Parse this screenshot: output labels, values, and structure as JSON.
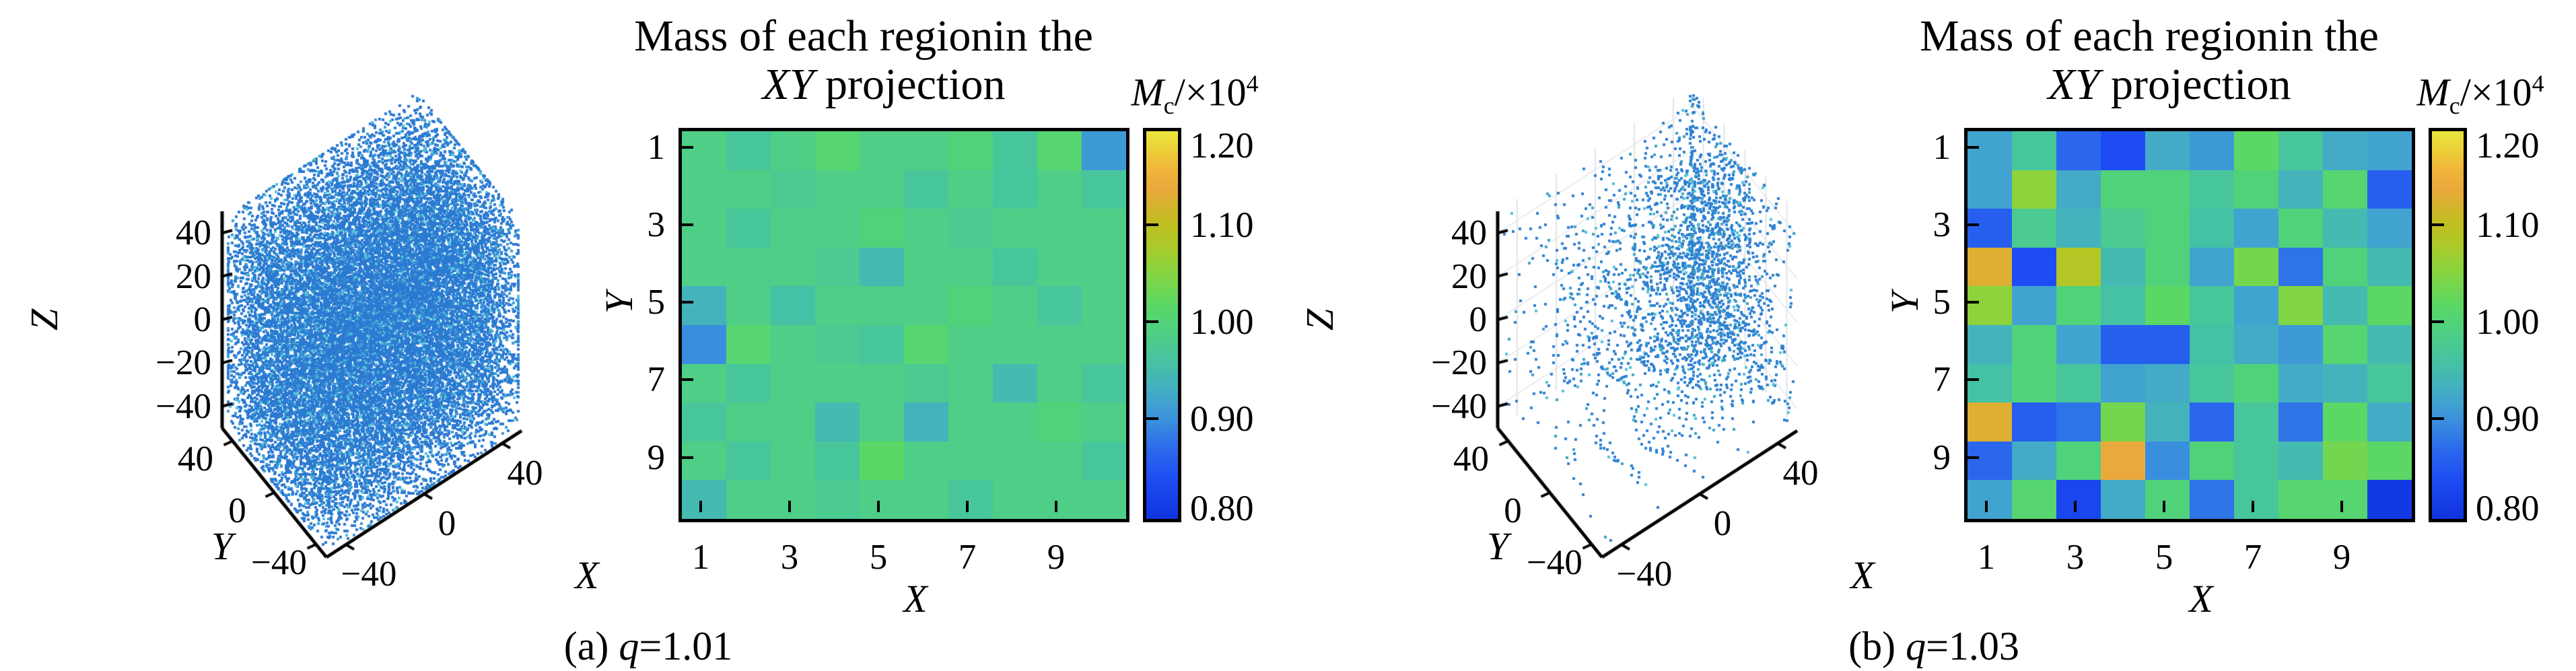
{
  "figure": {
    "background": "#ffffff",
    "point_base_color": "#2b7ad2",
    "point_accent_colors": [
      "#3f9ad6",
      "#55c2d8"
    ],
    "captions": [
      {
        "prefix": "(a) ",
        "var": "q",
        "value": "=1.01"
      },
      {
        "prefix": "(b) ",
        "var": "q",
        "value": "=1.03"
      }
    ]
  },
  "colormap": {
    "stops": [
      [
        0.8,
        "#0f33dd"
      ],
      [
        0.84,
        "#1d4df2"
      ],
      [
        0.87,
        "#2a67ec"
      ],
      [
        0.9,
        "#3a8ede"
      ],
      [
        0.92,
        "#41a3cf"
      ],
      [
        0.94,
        "#44b3bb"
      ],
      [
        0.96,
        "#45c1a5"
      ],
      [
        0.98,
        "#4bca91"
      ],
      [
        1.0,
        "#50d27b"
      ],
      [
        1.02,
        "#5bd765"
      ],
      [
        1.04,
        "#74d64e"
      ],
      [
        1.06,
        "#8ed33c"
      ],
      [
        1.08,
        "#a9ca2b"
      ],
      [
        1.1,
        "#bcc120"
      ],
      [
        1.12,
        "#d2b42a"
      ],
      [
        1.14,
        "#eaa93c"
      ],
      [
        1.16,
        "#f0b43a"
      ],
      [
        1.18,
        "#edcf39"
      ],
      [
        1.2,
        "#e9e63c"
      ]
    ]
  },
  "chart_data": [
    {
      "type": "scatter3d",
      "panel": "a",
      "description": "Dense cube-filling point cloud with concentric shell striations, q=1.01",
      "point_color": "#2b7ad2",
      "accent_colors": [
        "#3f9ad6",
        "#55c2d8"
      ],
      "show_back_grid": false,
      "generator": {
        "kind": "concentric_shells",
        "seed": 1234,
        "shells": 32,
        "spacing": 2.62,
        "density": 0.5,
        "clip": 48.5,
        "keep_clipped_near": 0.4,
        "keep_clipped_far": 0.25
      },
      "axes": {
        "x": {
          "label": "X",
          "ticks": [
            "−40",
            "0",
            "40"
          ],
          "tick_values": [
            -40,
            0,
            40
          ],
          "range": [
            -50,
            50
          ]
        },
        "y": {
          "label": "Y",
          "ticks": [
            "40",
            "0",
            "−40"
          ],
          "tick_values": [
            40,
            0,
            -40
          ],
          "range": [
            -50,
            50
          ]
        },
        "z": {
          "label": "Z",
          "ticks": [
            "40",
            "20",
            "0",
            "−20",
            "−40"
          ],
          "tick_values": [
            40,
            20,
            0,
            -20,
            -40
          ],
          "range": [
            -50,
            50
          ]
        }
      }
    },
    {
      "type": "heatmap",
      "panel": "a",
      "title_line1": "Mass of each regionin the",
      "title_line2_italic": "XY",
      "title_line2_rest": " projection",
      "colorbar_label": {
        "var": "M",
        "sub": "c",
        "rest": "/×10",
        "sup": "4"
      },
      "x_label": "X",
      "y_label": "Y",
      "x_ticks": [
        "1",
        "3",
        "5",
        "7",
        "9"
      ],
      "y_ticks": [
        "1",
        "3",
        "5",
        "7",
        "9"
      ],
      "colorbar_ticks": [
        "1.20",
        "1.10",
        "1.00",
        "0.90",
        "0.80"
      ],
      "vmin": 0.8,
      "vmax": 1.2,
      "n_rows": 10,
      "n_cols": 10,
      "matrix": [
        [
          0.99,
          0.97,
          0.99,
          1.01,
          0.99,
          0.99,
          1.0,
          0.97,
          1.01,
          0.91
        ],
        [
          0.99,
          0.99,
          0.98,
          0.99,
          0.99,
          0.97,
          0.99,
          0.97,
          0.99,
          0.97
        ],
        [
          0.99,
          0.97,
          0.99,
          0.99,
          1.0,
          0.99,
          0.98,
          0.99,
          0.99,
          0.99
        ],
        [
          0.99,
          0.99,
          0.99,
          0.98,
          0.95,
          0.99,
          0.99,
          0.97,
          0.99,
          0.99
        ],
        [
          0.94,
          0.99,
          0.96,
          0.99,
          0.99,
          0.99,
          1.0,
          0.99,
          0.97,
          0.99
        ],
        [
          0.9,
          1.01,
          0.99,
          0.98,
          0.97,
          1.01,
          0.99,
          0.99,
          0.99,
          0.99
        ],
        [
          0.99,
          0.97,
          0.99,
          0.99,
          0.99,
          0.98,
          0.99,
          0.95,
          0.99,
          0.97
        ],
        [
          0.97,
          0.99,
          0.99,
          0.95,
          0.99,
          0.94,
          0.99,
          0.99,
          1.0,
          0.99
        ],
        [
          0.99,
          0.97,
          0.99,
          0.97,
          1.02,
          0.99,
          0.99,
          0.99,
          0.99,
          0.97
        ],
        [
          0.95,
          0.99,
          0.99,
          0.98,
          0.99,
          0.99,
          0.97,
          0.99,
          0.99,
          0.99
        ]
      ]
    },
    {
      "type": "scatter3d",
      "panel": "b",
      "description": "Sparse vortex / logarithmic-spiral point cloud converging toward upper corner, q=1.03",
      "point_color": "#2e80d2",
      "accent_colors": [
        "#3fa3c4",
        "#55c2d8"
      ],
      "show_back_grid": true,
      "generator": {
        "kind": "log_spiral_vortex",
        "seed": 99,
        "center": [
          32,
          8
        ],
        "layers": 12,
        "z_start": -44,
        "z_step": 8,
        "arms": 11,
        "arm_points": 52,
        "r0": 5,
        "r_step": 2.35,
        "twist": 1.75,
        "phase_per_z": 0.018
      },
      "axes": {
        "x": {
          "label": "X",
          "ticks": [
            "−40",
            "0",
            "40"
          ],
          "tick_values": [
            -40,
            0,
            40
          ],
          "range": [
            -50,
            50
          ]
        },
        "y": {
          "label": "Y",
          "ticks": [
            "40",
            "0",
            "−40"
          ],
          "tick_values": [
            40,
            0,
            -40
          ],
          "range": [
            -50,
            50
          ]
        },
        "z": {
          "label": "Z",
          "ticks": [
            "40",
            "20",
            "0",
            "−20",
            "−40"
          ],
          "tick_values": [
            40,
            20,
            0,
            -20,
            -40
          ],
          "range": [
            -50,
            50
          ]
        }
      }
    },
    {
      "type": "heatmap",
      "panel": "b",
      "title_line1": "Mass of each regionin the",
      "title_line2_italic": "XY",
      "title_line2_rest": " projection",
      "colorbar_label": {
        "var": "M",
        "sub": "c",
        "rest": "/×10",
        "sup": "4"
      },
      "x_label": "X",
      "y_label": "Y",
      "x_ticks": [
        "1",
        "3",
        "5",
        "7",
        "9"
      ],
      "y_ticks": [
        "1",
        "3",
        "5",
        "7",
        "9"
      ],
      "colorbar_ticks": [
        "1.20",
        "1.10",
        "1.00",
        "0.90",
        "0.80"
      ],
      "vmin": 0.8,
      "vmax": 1.2,
      "n_rows": 10,
      "n_cols": 10,
      "matrix": [
        [
          0.92,
          0.97,
          0.87,
          0.84,
          0.93,
          0.91,
          1.02,
          0.97,
          0.93,
          0.92
        ],
        [
          0.92,
          1.06,
          0.93,
          1.0,
          1.0,
          0.97,
          1.0,
          0.94,
          1.01,
          0.86
        ],
        [
          0.86,
          0.98,
          0.94,
          0.98,
          1.0,
          0.96,
          0.92,
          1.0,
          0.95,
          0.92
        ],
        [
          1.13,
          0.84,
          1.09,
          0.95,
          1.0,
          0.92,
          1.04,
          0.88,
          1.0,
          0.95
        ],
        [
          1.06,
          0.92,
          1.0,
          0.96,
          1.02,
          0.97,
          0.92,
          1.05,
          0.95,
          1.02
        ],
        [
          0.94,
          1.0,
          0.92,
          0.86,
          0.86,
          0.96,
          0.93,
          0.91,
          1.01,
          0.95
        ],
        [
          0.96,
          1.0,
          0.97,
          0.92,
          0.93,
          0.97,
          1.0,
          0.93,
          0.94,
          0.97
        ],
        [
          1.13,
          0.86,
          0.88,
          1.04,
          0.94,
          0.87,
          0.97,
          0.88,
          1.02,
          0.93
        ],
        [
          0.87,
          0.93,
          1.0,
          1.14,
          0.9,
          1.0,
          0.97,
          0.95,
          1.04,
          1.02
        ],
        [
          0.92,
          1.01,
          0.83,
          0.93,
          1.0,
          0.88,
          0.97,
          1.01,
          1.01,
          0.81
        ]
      ]
    }
  ]
}
